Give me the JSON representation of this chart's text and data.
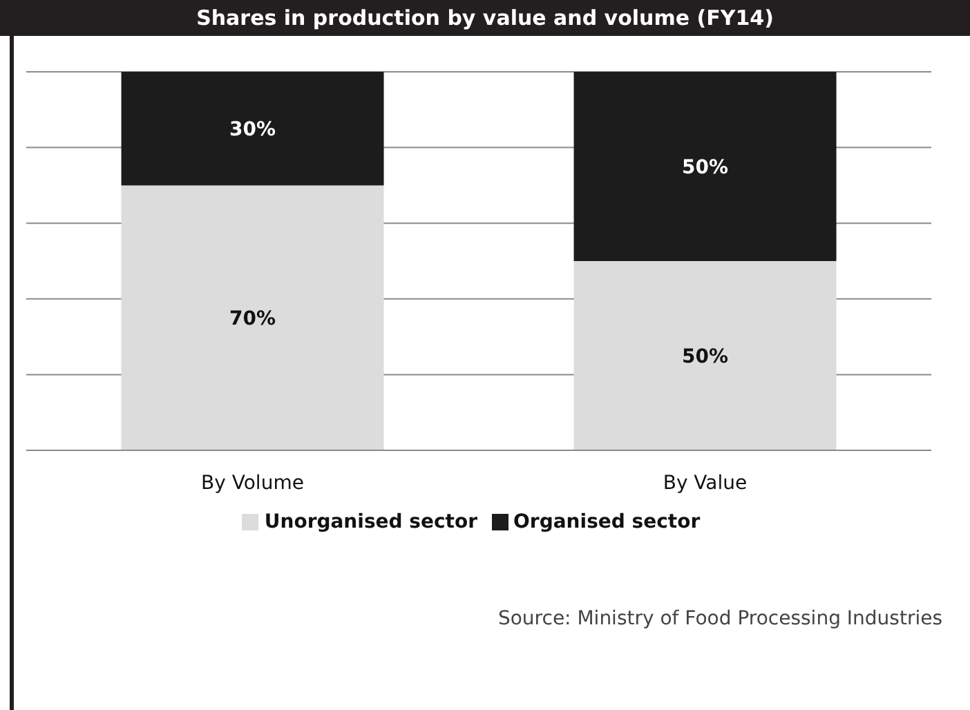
{
  "chart_data": {
    "type": "bar",
    "title": "Shares in production by value and volume (FY14)",
    "categories": [
      "By Volume",
      "By Value"
    ],
    "series": [
      {
        "name": "Unorganised sector",
        "color": "#dcdcdc",
        "values": [
          70,
          50
        ],
        "value_labels": [
          "70%",
          "50%"
        ]
      },
      {
        "name": "Organised sector",
        "color": "#1c1c1c",
        "values": [
          30,
          50
        ],
        "value_labels": [
          "30%",
          "50%"
        ]
      }
    ],
    "stacked": true,
    "ylim": [
      0,
      100
    ],
    "yticks": [
      {
        "value": 0,
        "label": null
      },
      {
        "value": 20,
        "label": null
      },
      {
        "value": 40,
        "label": null
      },
      {
        "value": 60,
        "label": null
      },
      {
        "value": 80,
        "label": null
      },
      {
        "value": 100,
        "label": null
      }
    ],
    "tick_labels": "x",
    "grid": "y",
    "legend": "bottom",
    "annotations": [
      "Source: Ministry of Food Processing Industries"
    ]
  }
}
